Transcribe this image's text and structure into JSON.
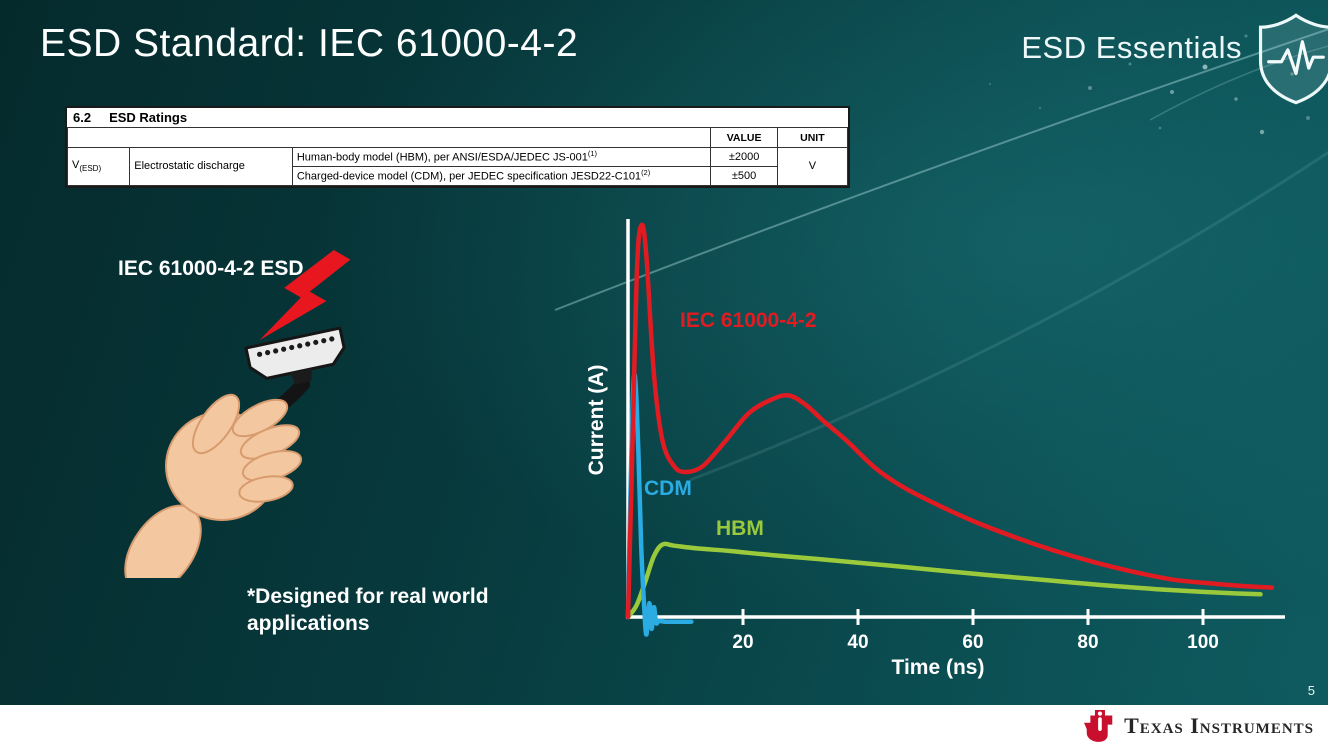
{
  "slide": {
    "title": "ESD Standard: IEC 61000-4-2",
    "series_brand": "ESD Essentials",
    "page_number": "5"
  },
  "ratings_table": {
    "section_number": "6.2",
    "section_title": "ESD Ratings",
    "headers": {
      "value": "VALUE",
      "unit": "UNIT"
    },
    "parameter": {
      "symbol": "V",
      "subscript": "(ESD)",
      "name": "Electrostatic discharge"
    },
    "rows": [
      {
        "description": "Human-body model (HBM), per ANSI/ESDA/JEDEC JS-001",
        "footnote": "(1)",
        "value": "±2000"
      },
      {
        "description": "Charged-device model (CDM), per JEDEC specification JESD22-C101",
        "footnote": "(2)",
        "value": "±500"
      }
    ],
    "unit": "V"
  },
  "left_panel": {
    "label": "IEC 61000-4-2 ESD",
    "note": "*Designed for real world applications"
  },
  "chart_data": {
    "type": "line",
    "title": "",
    "xlabel": "Time (ns)",
    "ylabel": "Current (A)",
    "x_ticks": [
      20,
      40,
      60,
      80,
      100
    ],
    "xlim": [
      0,
      115
    ],
    "ylim": [
      -0.05,
      1.05
    ],
    "grid": false,
    "legend": "inline colored labels next to curves",
    "series": [
      {
        "name": "IEC 61000-4-2",
        "color": "#e11b22",
        "points": [
          [
            0,
            0
          ],
          [
            0.8,
            0.45
          ],
          [
            1.6,
            0.9
          ],
          [
            2.4,
            1.0
          ],
          [
            3.2,
            0.92
          ],
          [
            4.5,
            0.62
          ],
          [
            6,
            0.45
          ],
          [
            8,
            0.385
          ],
          [
            10,
            0.37
          ],
          [
            13,
            0.385
          ],
          [
            17,
            0.45
          ],
          [
            21,
            0.52
          ],
          [
            25,
            0.555
          ],
          [
            28,
            0.565
          ],
          [
            31,
            0.54
          ],
          [
            34,
            0.5
          ],
          [
            38,
            0.45
          ],
          [
            43,
            0.38
          ],
          [
            48,
            0.33
          ],
          [
            54,
            0.285
          ],
          [
            60,
            0.245
          ],
          [
            67,
            0.205
          ],
          [
            74,
            0.17
          ],
          [
            81,
            0.14
          ],
          [
            88,
            0.115
          ],
          [
            95,
            0.095
          ],
          [
            102,
            0.085
          ],
          [
            108,
            0.078
          ],
          [
            112,
            0.075
          ]
        ]
      },
      {
        "name": "CDM",
        "color": "#2aabe2",
        "points": [
          [
            0,
            0
          ],
          [
            0.4,
            0.3
          ],
          [
            0.9,
            0.58
          ],
          [
            1.3,
            0.6
          ],
          [
            1.8,
            0.42
          ],
          [
            2.3,
            0.18
          ],
          [
            2.8,
            0.03
          ],
          [
            3.2,
            -0.045
          ],
          [
            3.7,
            0.035
          ],
          [
            4.1,
            -0.03
          ],
          [
            4.5,
            0.025
          ],
          [
            4.9,
            -0.015
          ],
          [
            5.4,
            -0.01
          ],
          [
            6.5,
            -0.012
          ],
          [
            8,
            -0.012
          ],
          [
            10,
            -0.012
          ],
          [
            11,
            -0.012
          ]
        ]
      },
      {
        "name": "HBM",
        "color": "#9aca3c",
        "points": [
          [
            0,
            0
          ],
          [
            1.5,
            0.03
          ],
          [
            3,
            0.09
          ],
          [
            4.5,
            0.155
          ],
          [
            6,
            0.185
          ],
          [
            8,
            0.182
          ],
          [
            12,
            0.175
          ],
          [
            18,
            0.168
          ],
          [
            25,
            0.158
          ],
          [
            33,
            0.148
          ],
          [
            42,
            0.136
          ],
          [
            52,
            0.122
          ],
          [
            62,
            0.108
          ],
          [
            72,
            0.095
          ],
          [
            82,
            0.082
          ],
          [
            92,
            0.071
          ],
          [
            100,
            0.064
          ],
          [
            106,
            0.06
          ],
          [
            110,
            0.058
          ]
        ]
      }
    ]
  },
  "footer": {
    "brand": "Texas Instruments"
  },
  "icons": {
    "esd-shield-icon": "shield outline with heartbeat pulse line",
    "lightning-bolt-icon": "red lightning bolt",
    "ti-bug-icon": "Texas Instruments red TI emblem"
  },
  "colors": {
    "iec_red": "#e11b22",
    "cdm_blue": "#2aabe2",
    "hbm_green": "#9aca3c",
    "background_teal": "#0a4b4f",
    "footer_white": "#ffffff",
    "ti_red": "#c8102e"
  }
}
